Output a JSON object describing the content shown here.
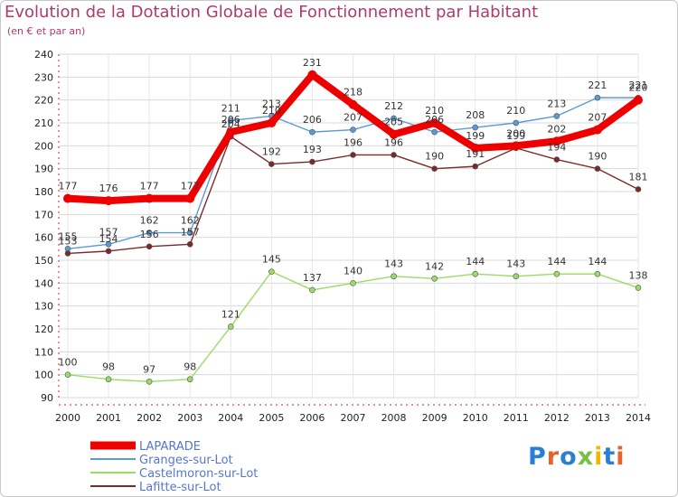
{
  "title": "Evolution de la Dotation Globale de Fonctionnement par Habitant",
  "subtitle": "(en € et par an)",
  "logo_text": "Proxiti",
  "chart_data": {
    "type": "line",
    "title": "Evolution de la Dotation Globale de Fonctionnement par Habitant",
    "subtitle": "(en € et par an)",
    "xlabel": "",
    "ylabel": "",
    "x": [
      "2000",
      "2001",
      "2002",
      "2003",
      "2004",
      "2005",
      "2006",
      "2007",
      "2008",
      "2009",
      "2010",
      "2011",
      "2012",
      "2013",
      "2014"
    ],
    "ylim": [
      90,
      240
    ],
    "yticks": [
      90,
      100,
      110,
      120,
      130,
      140,
      150,
      160,
      170,
      180,
      190,
      200,
      210,
      220,
      230,
      240
    ],
    "grid": true,
    "legend_position": "bottom-left",
    "series": [
      {
        "name": "LAPARADE",
        "color": "#ee0000",
        "emphasis": true,
        "values": [
          177,
          176,
          177,
          177,
          206,
          210,
          231,
          218,
          205,
          210,
          199,
          200,
          202,
          207,
          220
        ]
      },
      {
        "name": "Granges-sur-Lot",
        "color": "#5b9bd5",
        "values": [
          155,
          157,
          162,
          162,
          211,
          213,
          206,
          207,
          212,
          206,
          208,
          210,
          213,
          221,
          221
        ]
      },
      {
        "name": "Castelmoron-sur-Lot",
        "color": "#99dd66",
        "values": [
          100,
          98,
          97,
          98,
          121,
          145,
          137,
          140,
          143,
          142,
          144,
          143,
          144,
          144,
          138
        ]
      },
      {
        "name": "Lafitte-sur-Lot",
        "color": "#7a2a2a",
        "values": [
          153,
          154,
          156,
          157,
          204,
          192,
          193,
          196,
          196,
          190,
          191,
          199,
          194,
          190,
          181
        ]
      }
    ]
  }
}
